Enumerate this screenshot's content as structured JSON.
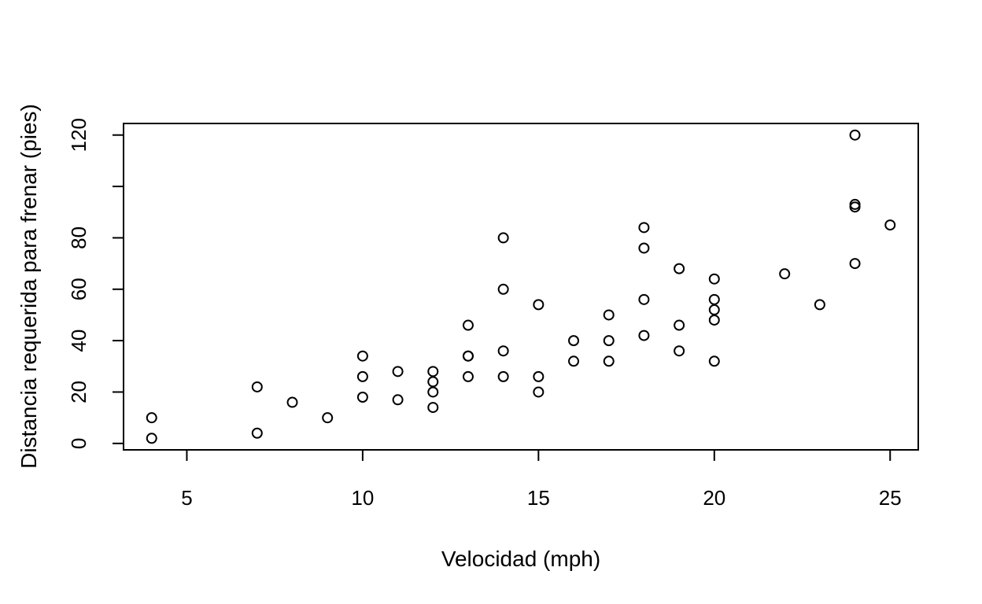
{
  "chart_data": {
    "type": "scatter",
    "title": "",
    "xlabel": "Velocidad (mph)",
    "ylabel": "Distancia requerida para frenar (pies)",
    "xlim": [
      3.2,
      25.8
    ],
    "ylim": [
      -2.5,
      124.5
    ],
    "x_ticks": [
      5,
      10,
      15,
      20,
      25
    ],
    "y_ticks": [
      0,
      20,
      40,
      60,
      80,
      100,
      120
    ],
    "y_tick_labels": [
      "0",
      "20",
      "40",
      "60",
      "80",
      "",
      "120"
    ],
    "grid": false,
    "legend": "none",
    "marker": "open-circle",
    "colors": {
      "marker": "#000000",
      "axis": "#000000",
      "background": "#ffffff"
    },
    "points": [
      {
        "x": 4,
        "y": 2
      },
      {
        "x": 4,
        "y": 10
      },
      {
        "x": 7,
        "y": 4
      },
      {
        "x": 7,
        "y": 22
      },
      {
        "x": 8,
        "y": 16
      },
      {
        "x": 9,
        "y": 10
      },
      {
        "x": 10,
        "y": 18
      },
      {
        "x": 10,
        "y": 26
      },
      {
        "x": 10,
        "y": 34
      },
      {
        "x": 11,
        "y": 17
      },
      {
        "x": 11,
        "y": 28
      },
      {
        "x": 12,
        "y": 14
      },
      {
        "x": 12,
        "y": 20
      },
      {
        "x": 12,
        "y": 24
      },
      {
        "x": 12,
        "y": 28
      },
      {
        "x": 13,
        "y": 26
      },
      {
        "x": 13,
        "y": 34
      },
      {
        "x": 13,
        "y": 34
      },
      {
        "x": 13,
        "y": 46
      },
      {
        "x": 14,
        "y": 26
      },
      {
        "x": 14,
        "y": 36
      },
      {
        "x": 14,
        "y": 60
      },
      {
        "x": 14,
        "y": 80
      },
      {
        "x": 15,
        "y": 20
      },
      {
        "x": 15,
        "y": 26
      },
      {
        "x": 15,
        "y": 54
      },
      {
        "x": 16,
        "y": 32
      },
      {
        "x": 16,
        "y": 40
      },
      {
        "x": 17,
        "y": 32
      },
      {
        "x": 17,
        "y": 40
      },
      {
        "x": 17,
        "y": 50
      },
      {
        "x": 18,
        "y": 42
      },
      {
        "x": 18,
        "y": 56
      },
      {
        "x": 18,
        "y": 76
      },
      {
        "x": 18,
        "y": 84
      },
      {
        "x": 19,
        "y": 36
      },
      {
        "x": 19,
        "y": 46
      },
      {
        "x": 19,
        "y": 68
      },
      {
        "x": 20,
        "y": 32
      },
      {
        "x": 20,
        "y": 48
      },
      {
        "x": 20,
        "y": 52
      },
      {
        "x": 20,
        "y": 56
      },
      {
        "x": 20,
        "y": 64
      },
      {
        "x": 22,
        "y": 66
      },
      {
        "x": 23,
        "y": 54
      },
      {
        "x": 24,
        "y": 70
      },
      {
        "x": 24,
        "y": 92
      },
      {
        "x": 24,
        "y": 93
      },
      {
        "x": 24,
        "y": 120
      },
      {
        "x": 25,
        "y": 85
      }
    ]
  }
}
